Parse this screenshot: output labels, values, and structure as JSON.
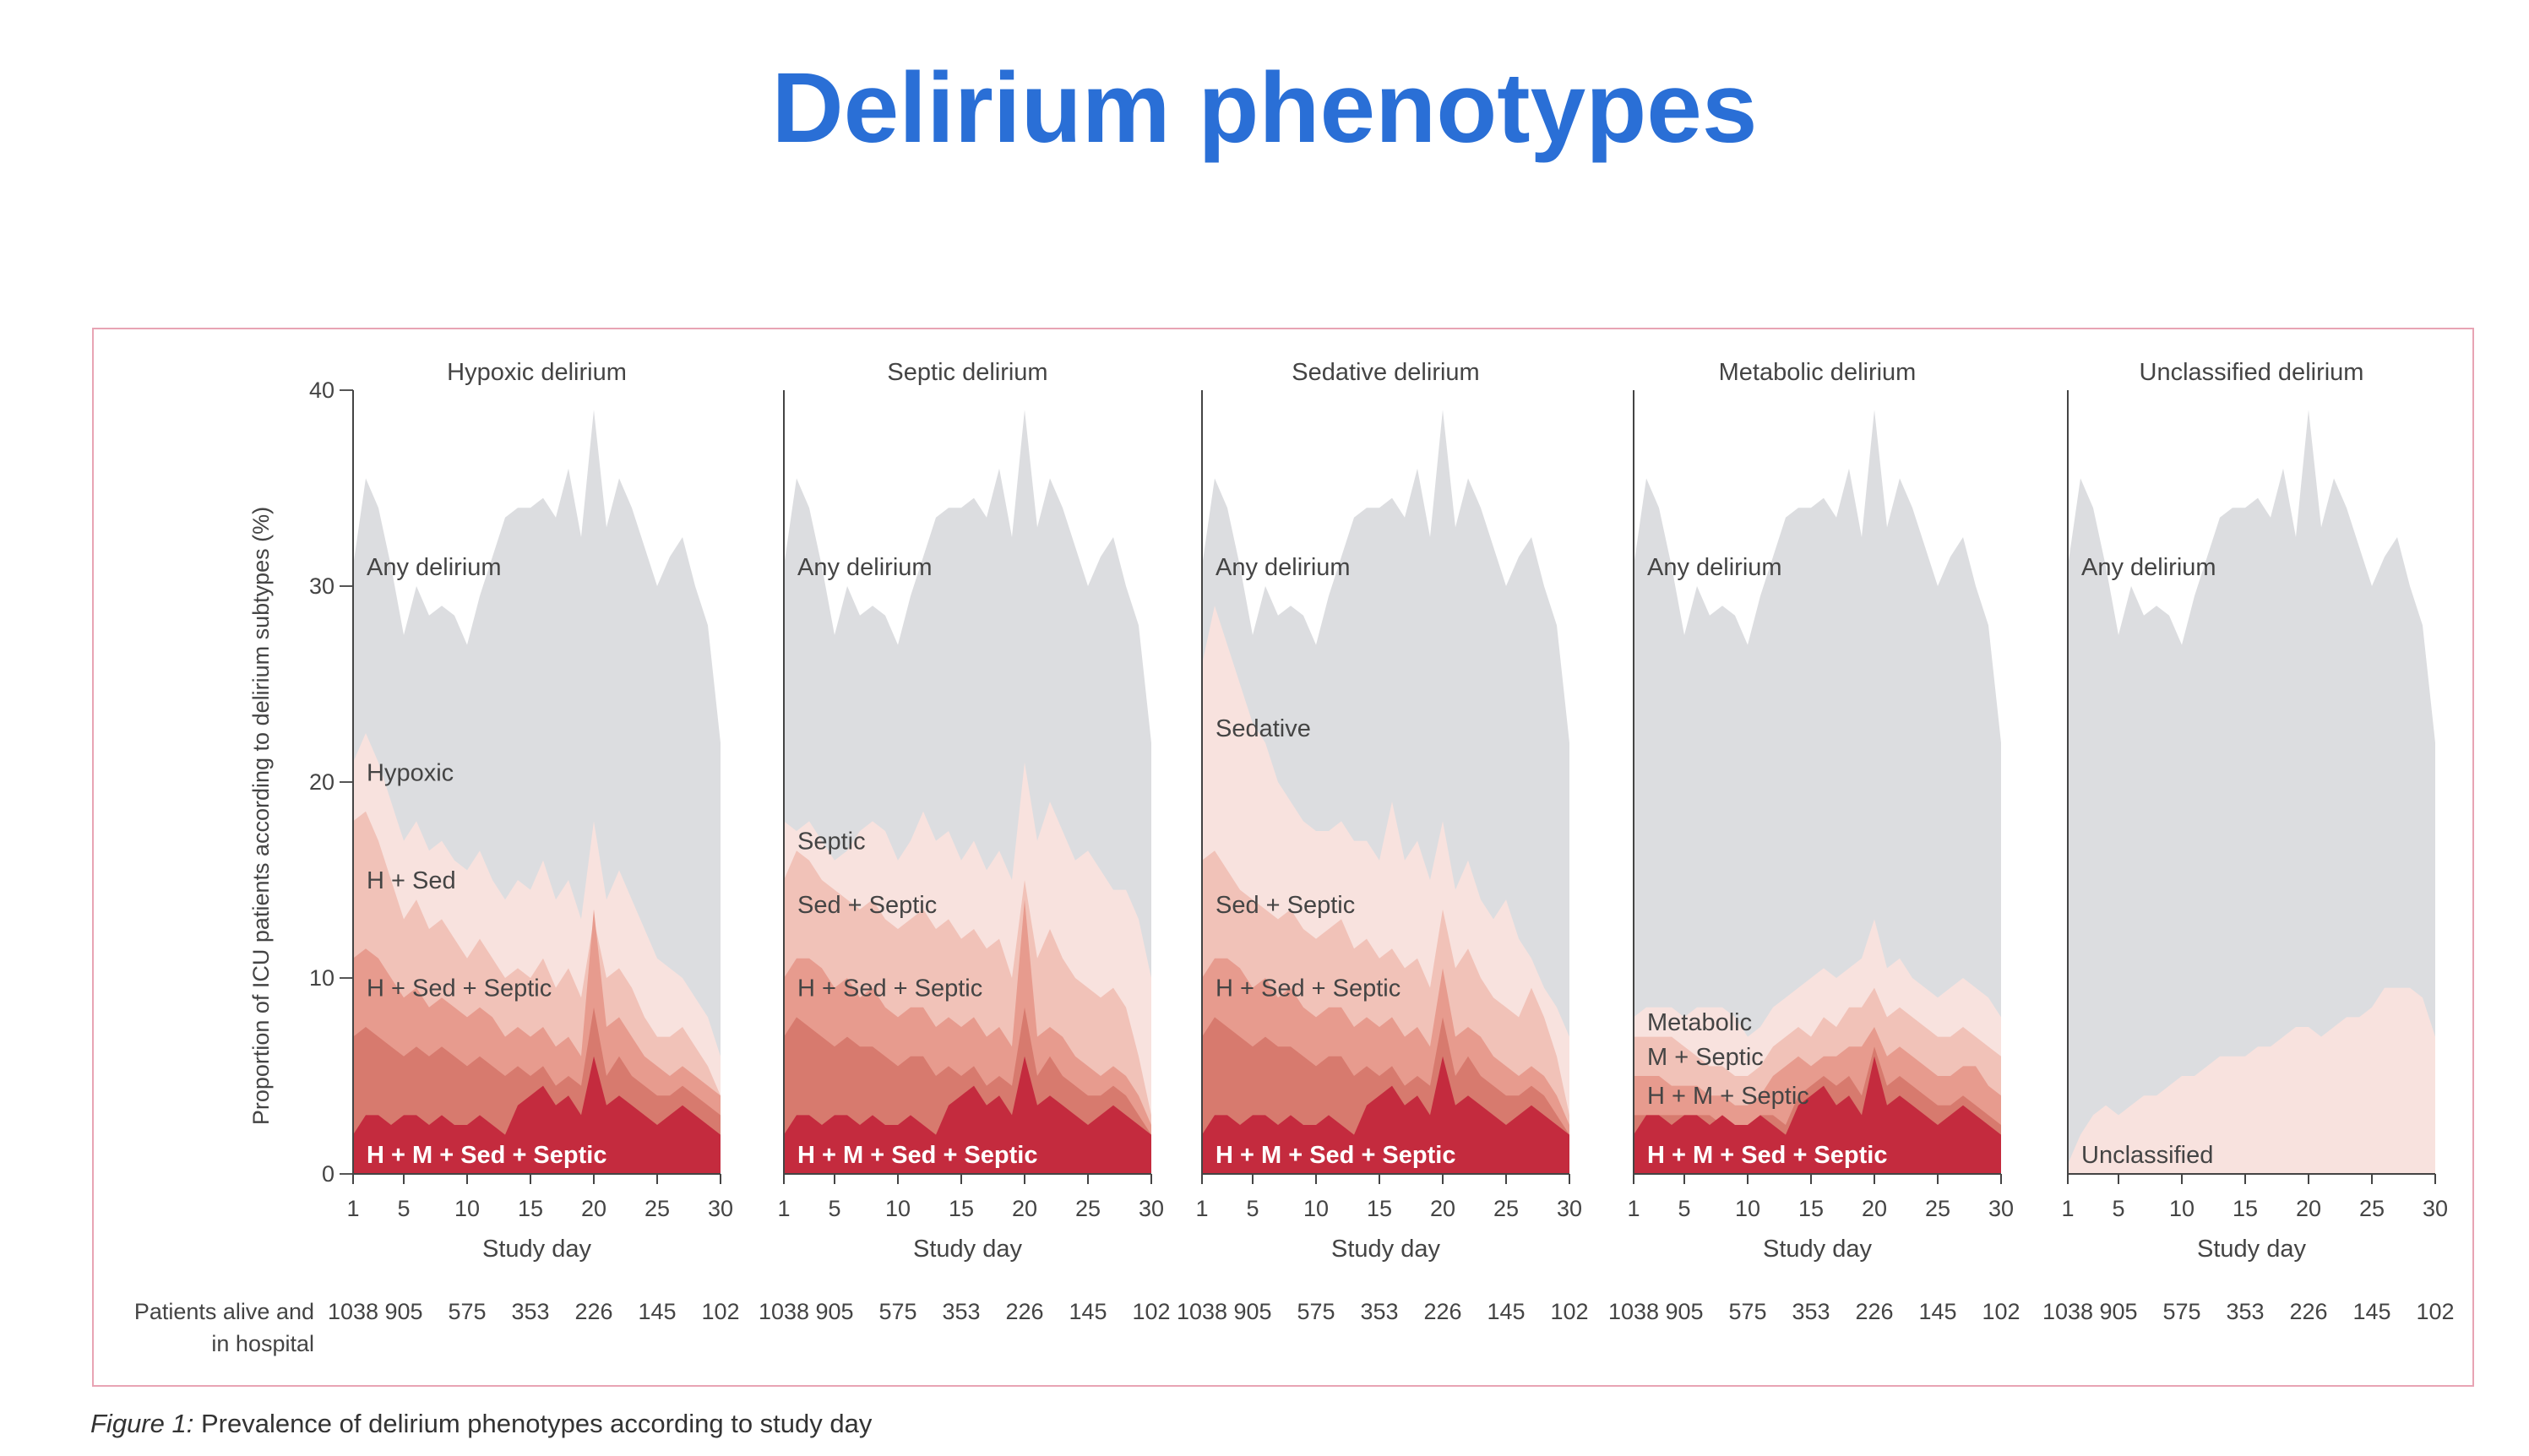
{
  "title": "Delirium phenotypes",
  "caption": {
    "label": "Figure 1:",
    "text": " Prevalence of delirium phenotypes according to study day"
  },
  "colors": {
    "title": "#2a6fd6",
    "frame": "#e8a4b4",
    "any": "#dcdde0",
    "layer1": "#f8e2de",
    "layer2": "#f1c2b8",
    "layer3": "#e79b8e",
    "layer4": "#d77a6e",
    "layer5": "#c42b3e"
  },
  "chart_data": {
    "type": "area",
    "ylabel": "Proportion of ICU patients according to delirium subtypes (%)",
    "xlabel": "Study day",
    "ylim": [
      0,
      40
    ],
    "xlim": [
      1,
      30
    ],
    "yticks": [
      0,
      10,
      20,
      30,
      40
    ],
    "xticks": [
      1,
      5,
      10,
      15,
      20,
      25,
      30
    ],
    "patients_label": "Patients alive and in hospital",
    "patients_values": [
      "1038",
      "905",
      "575",
      "353",
      "226",
      "145",
      "102"
    ],
    "x": [
      1,
      2,
      3,
      4,
      5,
      6,
      7,
      8,
      9,
      10,
      11,
      12,
      13,
      14,
      15,
      16,
      17,
      18,
      19,
      20,
      21,
      22,
      23,
      24,
      25,
      26,
      27,
      28,
      29,
      30
    ],
    "any_delirium": [
      31,
      35.5,
      34,
      31,
      27.5,
      30,
      28.5,
      29,
      28.5,
      27,
      29.5,
      31.5,
      33.5,
      34,
      34,
      34.5,
      33.5,
      36,
      32.5,
      39,
      33,
      35.5,
      34,
      32,
      30,
      31.5,
      32.5,
      30,
      28,
      22
    ],
    "panels": [
      {
        "title": "Hypoxic delirium",
        "labels": [
          "Any delirium",
          "Hypoxic",
          "H + Sed",
          "H + Sed + Septic",
          "H + M + Sed + Septic"
        ],
        "layers": [
          [
            21,
            22.5,
            21,
            19,
            17,
            18,
            16.5,
            17,
            16,
            15.5,
            16.5,
            15,
            14,
            15,
            14.5,
            16,
            14,
            15,
            13,
            18,
            14,
            15.5,
            14,
            12.5,
            11,
            10.5,
            10,
            9,
            8,
            6
          ],
          [
            18,
            18.5,
            17,
            15,
            13,
            14,
            12.5,
            13,
            12,
            11,
            12,
            11,
            10,
            10.5,
            10,
            11,
            9.5,
            10.5,
            9,
            13,
            10,
            10.5,
            9.5,
            8,
            7,
            7,
            7.5,
            6.5,
            5.5,
            4
          ],
          [
            11,
            11.5,
            11,
            10,
            9,
            9.5,
            8.5,
            9,
            8.5,
            8,
            8.5,
            8,
            7,
            7.5,
            7,
            7.5,
            6.5,
            7,
            6,
            13.5,
            7.5,
            8,
            7,
            6,
            5.5,
            5,
            5.5,
            5,
            4.5,
            4
          ],
          [
            7,
            7.5,
            7,
            6.5,
            6,
            6.5,
            6,
            6.5,
            6,
            5.5,
            6,
            5.5,
            5,
            5.5,
            5,
            5.5,
            4.5,
            5,
            4.5,
            8.5,
            5,
            6,
            5,
            4.5,
            4,
            4,
            4.5,
            4,
            3.5,
            3
          ],
          [
            2,
            3,
            3,
            2.5,
            3,
            3,
            2.5,
            3,
            2.5,
            2.5,
            3,
            2.5,
            2,
            3.5,
            4,
            4.5,
            3.5,
            4,
            3,
            6,
            3.5,
            4,
            3.5,
            3,
            2.5,
            3,
            3.5,
            3,
            2.5,
            2
          ]
        ]
      },
      {
        "title": "Septic delirium",
        "labels": [
          "Any delirium",
          "Septic",
          "Sed + Septic",
          "H + Sed + Septic",
          "H + M + Sed + Septic"
        ],
        "layers": [
          [
            18,
            17.5,
            18,
            17,
            16,
            16.5,
            17.5,
            18,
            17.5,
            16,
            17,
            18.5,
            17,
            17.5,
            16,
            17,
            15.5,
            16.5,
            15,
            21,
            17,
            19,
            17.5,
            16,
            16.5,
            15.5,
            14.5,
            14.5,
            13,
            10
          ],
          [
            15,
            16.5,
            16,
            15,
            14.5,
            14,
            13.5,
            14,
            13,
            12.5,
            13,
            13.5,
            12.5,
            13,
            12,
            12.5,
            11.5,
            12,
            10,
            15,
            11,
            12.5,
            11,
            10,
            9.5,
            9,
            9.5,
            8.5,
            6,
            3
          ],
          [
            10,
            11,
            11,
            10.5,
            9.5,
            10,
            9,
            9.5,
            8.5,
            8,
            8.5,
            8.5,
            7.5,
            8,
            7.5,
            8,
            7,
            7.5,
            6.5,
            14,
            7,
            7.5,
            7,
            6,
            5.5,
            5,
            5.5,
            5,
            4,
            2.5
          ],
          [
            7,
            8,
            7.5,
            7,
            6.5,
            7,
            6.5,
            6.5,
            6,
            5.5,
            6,
            6,
            5,
            5.5,
            5,
            5.5,
            4.5,
            5,
            4.5,
            8.5,
            5,
            6,
            5,
            4.5,
            4,
            4,
            4.5,
            4,
            3,
            2
          ],
          [
            2,
            3,
            3,
            2.5,
            3,
            3,
            2.5,
            3,
            2.5,
            2.5,
            3,
            2.5,
            2,
            3.5,
            4,
            4.5,
            3.5,
            4,
            3,
            6,
            3.5,
            4,
            3.5,
            3,
            2.5,
            3,
            3.5,
            3,
            2.5,
            2
          ]
        ]
      },
      {
        "title": "Sedative delirium",
        "labels": [
          "Any delirium",
          "Sedative",
          "Sed + Septic",
          "H + Sed + Septic",
          "H + M + Sed + Septic"
        ],
        "layers": [
          [
            26,
            29,
            27,
            25,
            23,
            22,
            20,
            19,
            18,
            17.5,
            17.5,
            18,
            17,
            17,
            16,
            19,
            16,
            17,
            15,
            18,
            14.5,
            16,
            14,
            13,
            14,
            12,
            11,
            9.5,
            8.5,
            7
          ],
          [
            16,
            16.5,
            15.5,
            14.5,
            14,
            13.5,
            13,
            13.5,
            12.5,
            12,
            12.5,
            13,
            11.5,
            12,
            11,
            11.5,
            10.5,
            11,
            9.5,
            13.5,
            10.5,
            11.5,
            10,
            9,
            8.5,
            8,
            9.5,
            8,
            6,
            3
          ],
          [
            10,
            11,
            11,
            10.5,
            9.5,
            10,
            9,
            9.5,
            8.5,
            8,
            8.5,
            8.5,
            7.5,
            8,
            7.5,
            8,
            7,
            7.5,
            6.5,
            10.5,
            7,
            7.5,
            7,
            6,
            5.5,
            5,
            5.5,
            5,
            4,
            2.5
          ],
          [
            7,
            8,
            7.5,
            7,
            6.5,
            7,
            6.5,
            6.5,
            6,
            5.5,
            6,
            6,
            5,
            5.5,
            5,
            5.5,
            4.5,
            5,
            4.5,
            8,
            5,
            6,
            5,
            4.5,
            4,
            4,
            4.5,
            4,
            3,
            2
          ],
          [
            2,
            3,
            3,
            2.5,
            3,
            3,
            2.5,
            3,
            2.5,
            2.5,
            3,
            2.5,
            2,
            3.5,
            4,
            4.5,
            3.5,
            4,
            3,
            6,
            3.5,
            4,
            3.5,
            3,
            2.5,
            3,
            3.5,
            3,
            2.5,
            2
          ]
        ]
      },
      {
        "title": "Metabolic delirium",
        "labels": [
          "Any delirium",
          "Metabolic",
          "M + Septic",
          "H + M + Septic",
          "H + M + Sed + Septic"
        ],
        "layers": [
          [
            8,
            8.5,
            8.5,
            8.5,
            8,
            8.5,
            8.5,
            8.5,
            8,
            7,
            7.5,
            8.5,
            9,
            9.5,
            10,
            10.5,
            10,
            10.5,
            11,
            13,
            10.5,
            11,
            10,
            9.5,
            9,
            9.5,
            10,
            9.5,
            9,
            8
          ],
          [
            7,
            7,
            7,
            7,
            6.5,
            6,
            5.5,
            5.5,
            5,
            5,
            5.5,
            6.5,
            7,
            7.5,
            7,
            8,
            7.5,
            8.5,
            8.5,
            9.5,
            8,
            8.5,
            8,
            7.5,
            7,
            7,
            7.5,
            7,
            6.5,
            6
          ],
          [
            5,
            5,
            5,
            4.5,
            4.5,
            4.5,
            4,
            4,
            3.5,
            3.5,
            4,
            5,
            5.5,
            6,
            5.5,
            6,
            6,
            6.5,
            6.5,
            7.5,
            6,
            6.5,
            6,
            5.5,
            5,
            5,
            5.5,
            5.5,
            4.5,
            4
          ],
          [
            3,
            3,
            3,
            3,
            3,
            3,
            3,
            2.5,
            2.5,
            2.5,
            3,
            3,
            2.5,
            4,
            4.5,
            5,
            4.5,
            5,
            4,
            6.5,
            4.5,
            5,
            4.5,
            4,
            3.5,
            3.5,
            4,
            3.5,
            3,
            2.5
          ],
          [
            2,
            3,
            3,
            2.5,
            3,
            3,
            2.5,
            3,
            2.5,
            2.5,
            3,
            2.5,
            2,
            3.5,
            4,
            4.5,
            3.5,
            4,
            3,
            6,
            3.5,
            4,
            3.5,
            3,
            2.5,
            3,
            3.5,
            3,
            2.5,
            2
          ]
        ]
      },
      {
        "title": "Unclassified delirium",
        "labels": [
          "Any delirium",
          "Unclassified"
        ],
        "layers": [
          [
            0.5,
            2,
            3,
            3.5,
            3,
            3.5,
            4,
            4,
            4.5,
            5,
            5,
            5.5,
            6,
            6,
            6,
            6.5,
            6.5,
            7,
            7.5,
            7.5,
            7,
            7.5,
            8,
            8,
            8.5,
            9.5,
            9.5,
            9.5,
            9,
            7
          ]
        ]
      }
    ]
  }
}
